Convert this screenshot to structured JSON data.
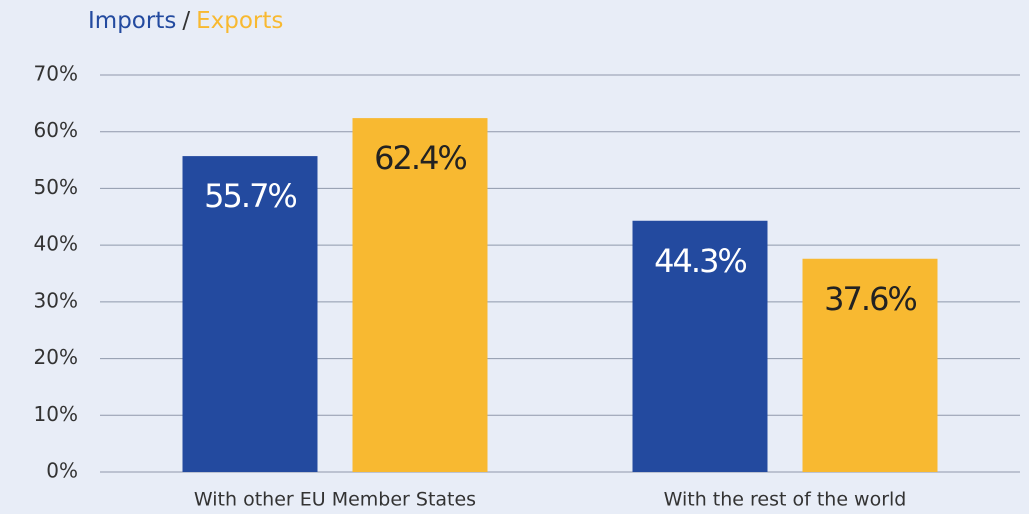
{
  "chart_data": {
    "type": "bar",
    "separator": "/",
    "categories": [
      "With other EU Member States",
      "With the rest of the world"
    ],
    "series": [
      {
        "name": "Imports",
        "color": "#234a9f",
        "values": [
          55.7,
          44.3
        ],
        "value_labels": [
          "55.7%",
          "44.3%"
        ]
      },
      {
        "name": "Exports",
        "color": "#f8b931",
        "values": [
          62.4,
          37.6
        ],
        "value_labels": [
          "62.4%",
          "37.6%"
        ]
      }
    ],
    "ylim": [
      0,
      70
    ],
    "yticks": [
      {
        "value": 0,
        "label": "0%"
      },
      {
        "value": 10,
        "label": "10%"
      },
      {
        "value": 20,
        "label": "20%"
      },
      {
        "value": 30,
        "label": "30%"
      },
      {
        "value": 40,
        "label": "40%"
      },
      {
        "value": 50,
        "label": "50%"
      },
      {
        "value": 60,
        "label": "60%"
      },
      {
        "value": 70,
        "label": "70%"
      }
    ],
    "grid": true
  }
}
